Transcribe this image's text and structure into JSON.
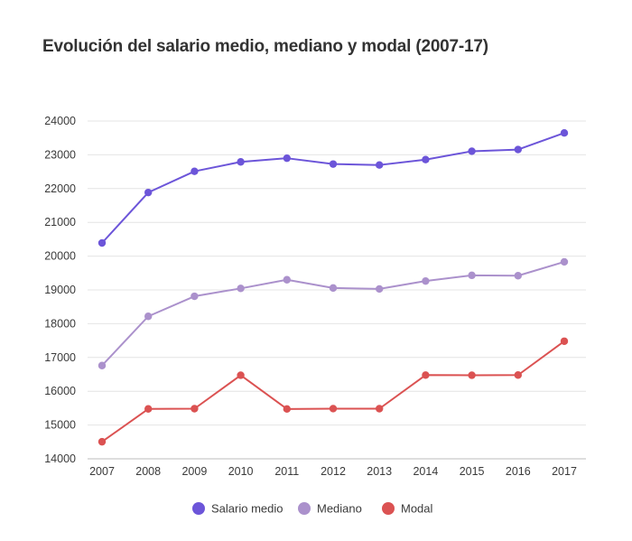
{
  "chart_data": {
    "type": "line",
    "title": "Evolución del salario medio, mediano y modal (2007-17)",
    "xlabel": "",
    "ylabel": "",
    "x": [
      "2007",
      "2008",
      "2009",
      "2010",
      "2011",
      "2012",
      "2013",
      "2014",
      "2015",
      "2016",
      "2017"
    ],
    "y_ticks": [
      "14000",
      "15000",
      "16000",
      "17000",
      "18000",
      "19000",
      "20000",
      "21000",
      "22000",
      "23000",
      "24000"
    ],
    "ylim": [
      14000,
      24000
    ],
    "grid": true,
    "legend_position": "bottom",
    "series": [
      {
        "name": "Salario medio",
        "color": "#6c55d9",
        "values": [
          20390,
          21884,
          22511,
          22790,
          22899,
          22726,
          22698,
          22858,
          23106,
          23156,
          23647
        ]
      },
      {
        "name": "Mediano",
        "color": "#ab91cc",
        "values": [
          16761,
          18218,
          18812,
          19045,
          19301,
          19057,
          19029,
          19263,
          19432,
          19421,
          19830
        ]
      },
      {
        "name": "Modal",
        "color": "#db5252",
        "values": [
          14505,
          15477,
          15484,
          16474,
          15475,
          15485,
          15484,
          16479,
          16474,
          16480,
          17482
        ]
      }
    ]
  }
}
